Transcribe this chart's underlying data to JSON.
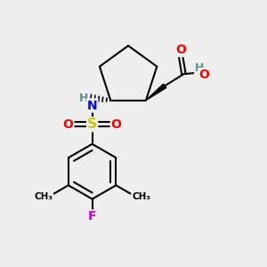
{
  "bg_color": "#eeeeee",
  "bond_color": "#000000",
  "atom_colors": {
    "O": "#ff0000",
    "N": "#0000ff",
    "S": "#cccc00",
    "F": "#cc00cc",
    "H": "#5a9090",
    "C": "#000000"
  },
  "figsize": [
    3.0,
    3.0
  ],
  "dpi": 100
}
